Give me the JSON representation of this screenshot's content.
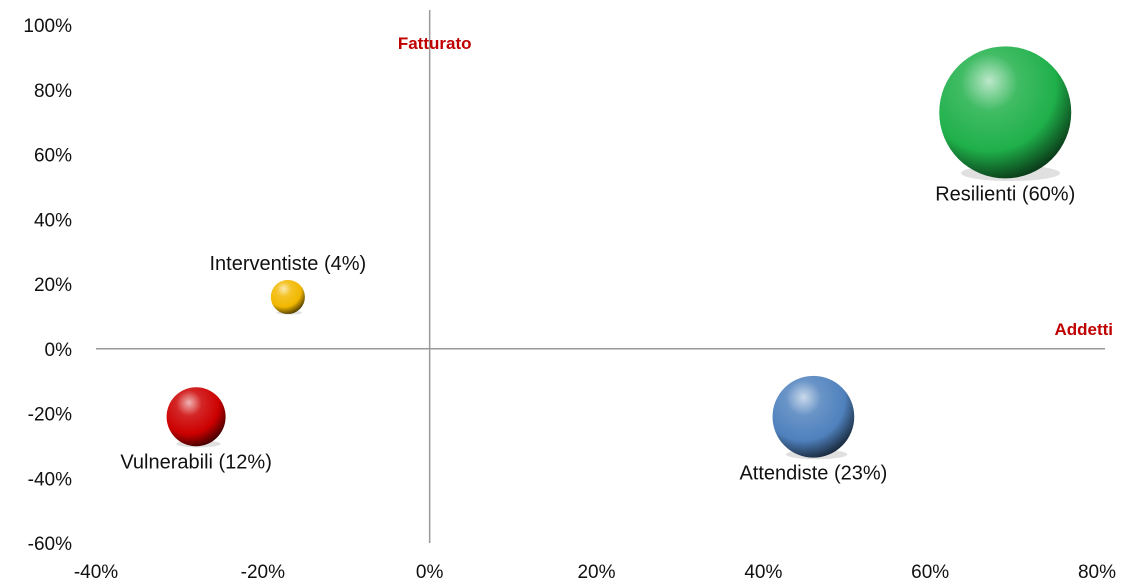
{
  "chart_data": {
    "type": "bubble",
    "xlim": [
      -0.4,
      0.8
    ],
    "ylim": [
      -0.6,
      1.0
    ],
    "x_ticks": [
      -0.4,
      -0.2,
      0,
      0.2,
      0.4,
      0.6,
      0.8
    ],
    "y_ticks": [
      -0.6,
      -0.4,
      -0.2,
      0,
      0.2,
      0.4,
      0.6,
      0.8,
      1.0
    ],
    "x_tick_labels": [
      "-40%",
      "-20%",
      "0%",
      "20%",
      "40%",
      "60%",
      "80%"
    ],
    "y_tick_labels": [
      "-60%",
      "-40%",
      "-20%",
      "0%",
      "20%",
      "40%",
      "60%",
      "80%",
      "100%"
    ],
    "x_axis_title": "Addetti",
    "y_axis_title": "Fatturato",
    "axis_title_color": "#c00000",
    "grid": false,
    "points": [
      {
        "label": "Resilienti (60%)",
        "x": 0.69,
        "y": 0.73,
        "share": 60,
        "color": "#1fb04a",
        "label_position": "below"
      },
      {
        "label": "Interventiste (4%)",
        "x": -0.17,
        "y": 0.16,
        "share": 4,
        "color": "#f2b800",
        "label_position": "above"
      },
      {
        "label": "Vulnerabili (12%)",
        "x": -0.28,
        "y": -0.21,
        "share": 12,
        "color": "#cc0000",
        "label_position": "below"
      },
      {
        "label": "Attendiste (23%)",
        "x": 0.46,
        "y": -0.21,
        "share": 23,
        "color": "#4f81bd",
        "label_position": "below"
      }
    ]
  }
}
